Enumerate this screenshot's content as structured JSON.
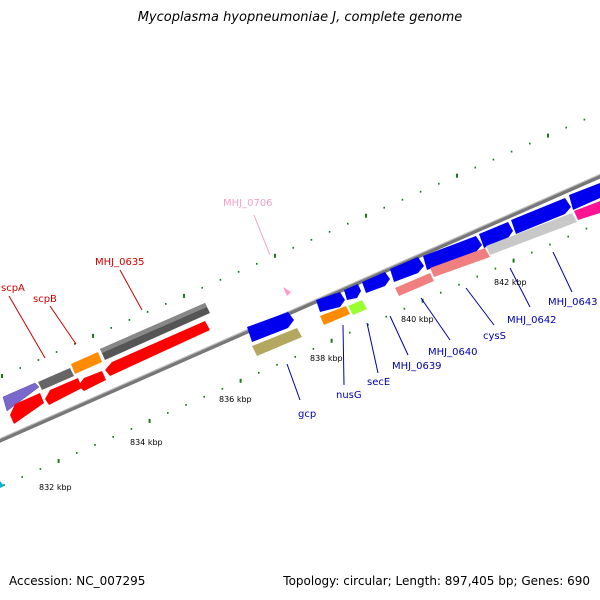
{
  "title": "Mycoplasma hyopneumoniae J, complete genome",
  "footer": {
    "accession": "Accession: NC_007295",
    "topology": "Topology: circular; Length: 897,405 bp; Genes: 690"
  },
  "colors": {
    "backbone": "#8c8c8c",
    "tick": "#1a7a1a",
    "red_label": "#cc0000",
    "blue_label": "#0000aa",
    "pink_label": "#f2a0c8",
    "gene_red": "#ff0000",
    "gene_blue": "#0000ee",
    "gene_gray": "#666666",
    "gene_lightgray": "#c8c8c8",
    "gene_orange": "#ff8c00",
    "gene_purple": "#7b68cc",
    "gene_salmon": "#f08080",
    "gene_olive": "#b4a860",
    "gene_lime": "#99ff33",
    "gene_magenta": "#ff1493",
    "gene_pink": "#ff99cc"
  },
  "scale_labels": [
    "832 kbp",
    "834 kbp",
    "836 kbp",
    "838 kbp",
    "840 kbp",
    "842 kbp"
  ],
  "gene_labels": {
    "scpA": "scpA",
    "scpB": "scpB",
    "MHJ_0635": "MHJ_0635",
    "MHJ_0706": "MHJ_0706",
    "gcp": "gcp",
    "nusG": "nusG",
    "secE": "secE",
    "MHJ_0639": "MHJ_0639",
    "MHJ_0640": "MHJ_0640",
    "cysS": "cysS",
    "MHJ_0642": "MHJ_0642",
    "MHJ_0643": "MHJ_0643"
  }
}
